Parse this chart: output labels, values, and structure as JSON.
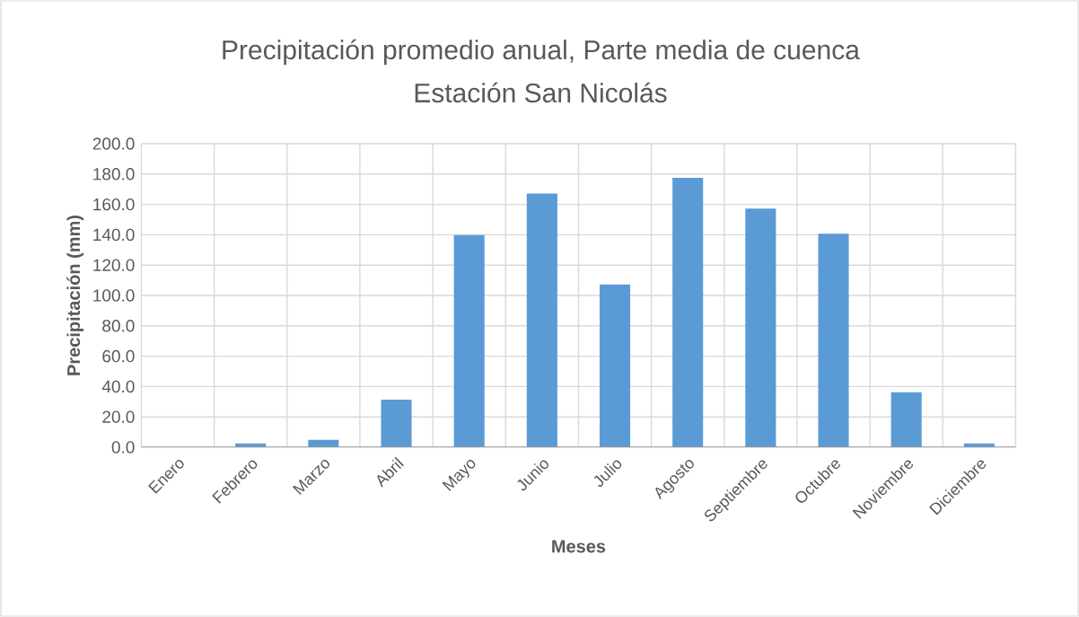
{
  "chart_data": {
    "type": "bar",
    "title": "Precipitación promedio anual, Parte media de cuenca",
    "subtitle": "Estación San Nicolás",
    "xlabel": "Meses",
    "ylabel": "Precipitación (mm)",
    "categories": [
      "Enero",
      "Febrero",
      "Marzo",
      "Abril",
      "Mayo",
      "Junio",
      "Julio",
      "Agosto",
      "Septiembre",
      "Octubre",
      "Noviembre",
      "Diciembre"
    ],
    "values": [
      0,
      2.5,
      4.9,
      31.4,
      139.8,
      167.2,
      107.2,
      177.5,
      157.2,
      140.7,
      36.2,
      2.5
    ],
    "color": "#5b9bd5",
    "ylim": [
      0,
      200
    ],
    "yticks": [
      {
        "value": 0,
        "label": "0.0"
      },
      {
        "value": 20,
        "label": "20.0"
      },
      {
        "value": 40,
        "label": "40.0"
      },
      {
        "value": 60,
        "label": "60.0"
      },
      {
        "value": 80,
        "label": "80.0"
      },
      {
        "value": 100,
        "label": "100.0"
      },
      {
        "value": 120,
        "label": "120.0"
      },
      {
        "value": 140,
        "label": "140.0"
      },
      {
        "value": 160,
        "label": "160.0"
      },
      {
        "value": 180,
        "label": "180.0"
      },
      {
        "value": 200,
        "label": "200.0"
      }
    ],
    "grid": true
  }
}
